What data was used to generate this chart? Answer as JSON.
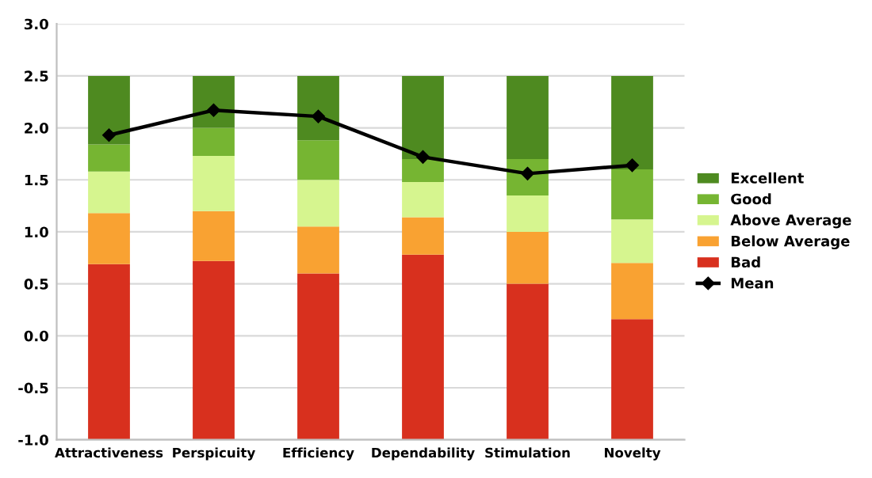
{
  "chart_data": {
    "type": "bar",
    "categories": [
      "Attractiveness",
      "Perspicuity",
      "Efficiency",
      "Dependability",
      "Stimulation",
      "Novelty"
    ],
    "series": [
      {
        "name": "Bad",
        "color": "#d8301e",
        "base": [
          -1.0,
          -1.0,
          -1.0,
          -1.0,
          -1.0,
          -1.0
        ],
        "values": [
          1.69,
          1.72,
          1.6,
          1.78,
          1.5,
          1.16
        ]
      },
      {
        "name": "Below Average",
        "color": "#f9a232",
        "base": [
          0.69,
          0.72,
          0.6,
          0.78,
          0.5,
          0.16
        ],
        "values": [
          0.49,
          0.48,
          0.45,
          0.36,
          0.5,
          0.54
        ]
      },
      {
        "name": "Above Average",
        "color": "#d6f58f",
        "base": [
          1.18,
          1.2,
          1.05,
          1.14,
          1.0,
          0.7
        ],
        "values": [
          0.4,
          0.53,
          0.45,
          0.34,
          0.35,
          0.42
        ]
      },
      {
        "name": "Good",
        "color": "#76b532",
        "base": [
          1.58,
          1.73,
          1.5,
          1.48,
          1.35,
          1.12
        ],
        "values": [
          0.26,
          0.27,
          0.38,
          0.22,
          0.35,
          0.48
        ]
      },
      {
        "name": "Excellent",
        "color": "#4e8a20",
        "base": [
          1.84,
          2.0,
          1.88,
          1.7,
          1.7,
          1.6
        ],
        "values": [
          0.66,
          0.5,
          0.62,
          0.8,
          0.8,
          0.9
        ]
      },
      {
        "name": "Mean",
        "type": "line",
        "color": "#000000",
        "marker": "diamond",
        "values": [
          1.93,
          2.17,
          2.11,
          1.72,
          1.56,
          1.64
        ]
      }
    ],
    "ylim": [
      -1.0,
      3.0
    ],
    "yticks": [
      {
        "value": -1.0,
        "label": "-1.0"
      },
      {
        "value": -0.5,
        "label": "-0.5"
      },
      {
        "value": 0.0,
        "label": "0.0"
      },
      {
        "value": 0.5,
        "label": "0.5"
      },
      {
        "value": 1.0,
        "label": "1.0"
      },
      {
        "value": 1.5,
        "label": "1.5"
      },
      {
        "value": 2.0,
        "label": "2.0"
      },
      {
        "value": 2.5,
        "label": "2.5"
      },
      {
        "value": 3.0,
        "label": "3.0"
      }
    ],
    "grid": "y",
    "legend": "right"
  }
}
